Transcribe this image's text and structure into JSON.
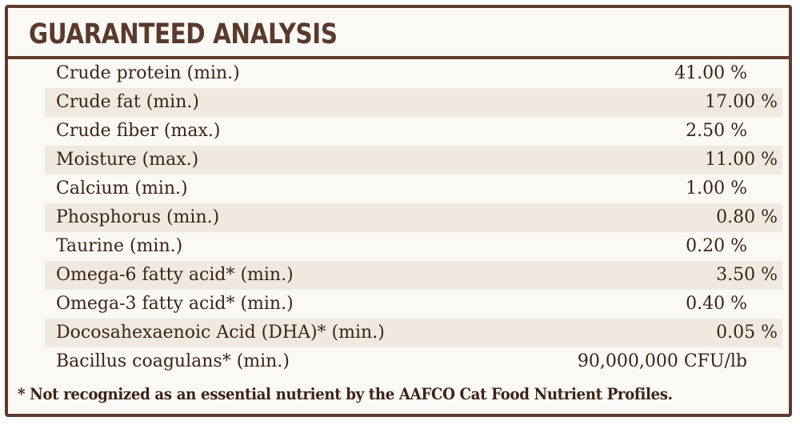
{
  "title": "GUARANTEED ANALYSIS",
  "rows": [
    {
      "name": "Crude protein (min.)",
      "amount": "41.00 %"
    },
    {
      "name": "Crude fat (min.)",
      "amount": "17.00 %"
    },
    {
      "name": "Crude fiber (max.)",
      "amount": "2.50 %"
    },
    {
      "name": "Moisture (max.)",
      "amount": "11.00 %"
    },
    {
      "name": "Calcium (min.)",
      "amount": "1.00 %"
    },
    {
      "name": "Phosphorus (min.)",
      "amount": "0.80 %"
    },
    {
      "name": "Taurine (min.)",
      "amount": "0.20 %"
    },
    {
      "name": "Omega-6 fatty acid* (min.)",
      "amount": "3.50 %"
    },
    {
      "name": "Omega-3 fatty acid* (min.)",
      "amount": "0.40 %"
    },
    {
      "name": "Docosahexaenoic Acid (DHA)* (min.)",
      "amount": "0.05 %"
    },
    {
      "name": "Bacillus coagulans* (min.)",
      "amount": "90,000,000 CFU/lb"
    }
  ],
  "footnote": "* Not recognized as an essential nutrient by the AAFCO Cat Food Nutrient Profiles.",
  "colors": {
    "border": "#5e3d2e",
    "title": "#5a3a2d",
    "text": "#3d2418",
    "row_shade": "#efe9e0",
    "background": "#fbf9f5"
  }
}
